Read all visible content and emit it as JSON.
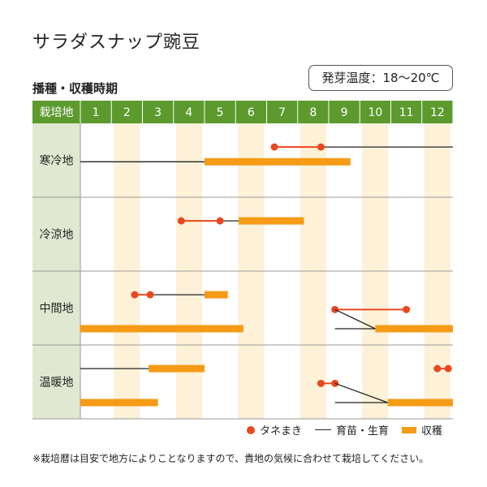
{
  "title": "サラダスナップ豌豆",
  "temperature": "発芽温度：18〜20℃",
  "subtitle": "播種・収穫時期",
  "legend": {
    "sow": "タネまき",
    "grow": "育苗・生育",
    "harvest": "収穫"
  },
  "note": "※栽培暦は目安で地方によりことなりますので、貴地の気候に合わせて栽培してください。",
  "colors": {
    "header": "#5c9a2e",
    "label_bg": "#e1e8d2",
    "stripe": "#fdf1d8",
    "sow": "#e8471f",
    "harvest": "#f59b16",
    "line": "#222222"
  },
  "chart_data": {
    "type": "gantt",
    "header_label": "栽培地",
    "months": [
      "1",
      "2",
      "3",
      "4",
      "5",
      "6",
      "7",
      "8",
      "9",
      "10",
      "11",
      "12"
    ],
    "regions": [
      {
        "name": "寒冷地",
        "tracks": [
          {
            "row": 0,
            "sow": [
              7.25,
              8.75
            ],
            "links": [
              [
                8.75,
                13.0
              ]
            ]
          },
          {
            "row": 1,
            "links": [
              [
                1.0,
                5.0
              ]
            ],
            "harvest": [
              [
                5.0,
                9.7
              ]
            ]
          }
        ]
      },
      {
        "name": "冷涼地",
        "tracks": [
          {
            "row": 0,
            "sow": [
              4.25,
              5.5
            ],
            "links": [
              [
                5.5,
                6.1
              ]
            ],
            "harvest": [
              [
                6.1,
                8.2
              ]
            ]
          }
        ]
      },
      {
        "name": "中間地",
        "tracks": [
          {
            "row": 0,
            "sow": [
              2.75,
              3.25
            ],
            "links": [
              [
                3.25,
                5.0
              ]
            ],
            "harvest": [
              [
                5.0,
                5.75
              ]
            ]
          },
          {
            "row": 1,
            "sow": [
              9.2,
              11.5
            ],
            "links": [
              [
                9.2,
                11.5
              ]
            ]
          },
          {
            "row": 2,
            "links": [
              [
                9.2,
                10.5
              ]
            ],
            "harvest": [
              [
                1.0,
                6.25
              ],
              [
                10.5,
                13.0
              ]
            ]
          }
        ]
      },
      {
        "name": "温暖地",
        "tracks": [
          {
            "row": 0,
            "links": [
              [
                1.0,
                3.2
              ]
            ],
            "harvest": [
              [
                3.2,
                5.0
              ]
            ]
          },
          {
            "row": 0,
            "sow": [
              12.5,
              12.85
            ]
          },
          {
            "row": 1,
            "sow": [
              8.75,
              9.2
            ]
          },
          {
            "row": 2,
            "links": [
              [
                9.2,
                10.9
              ]
            ],
            "harvest": [
              [
                1.0,
                3.5
              ],
              [
                10.9,
                13.0
              ]
            ]
          }
        ]
      }
    ]
  }
}
